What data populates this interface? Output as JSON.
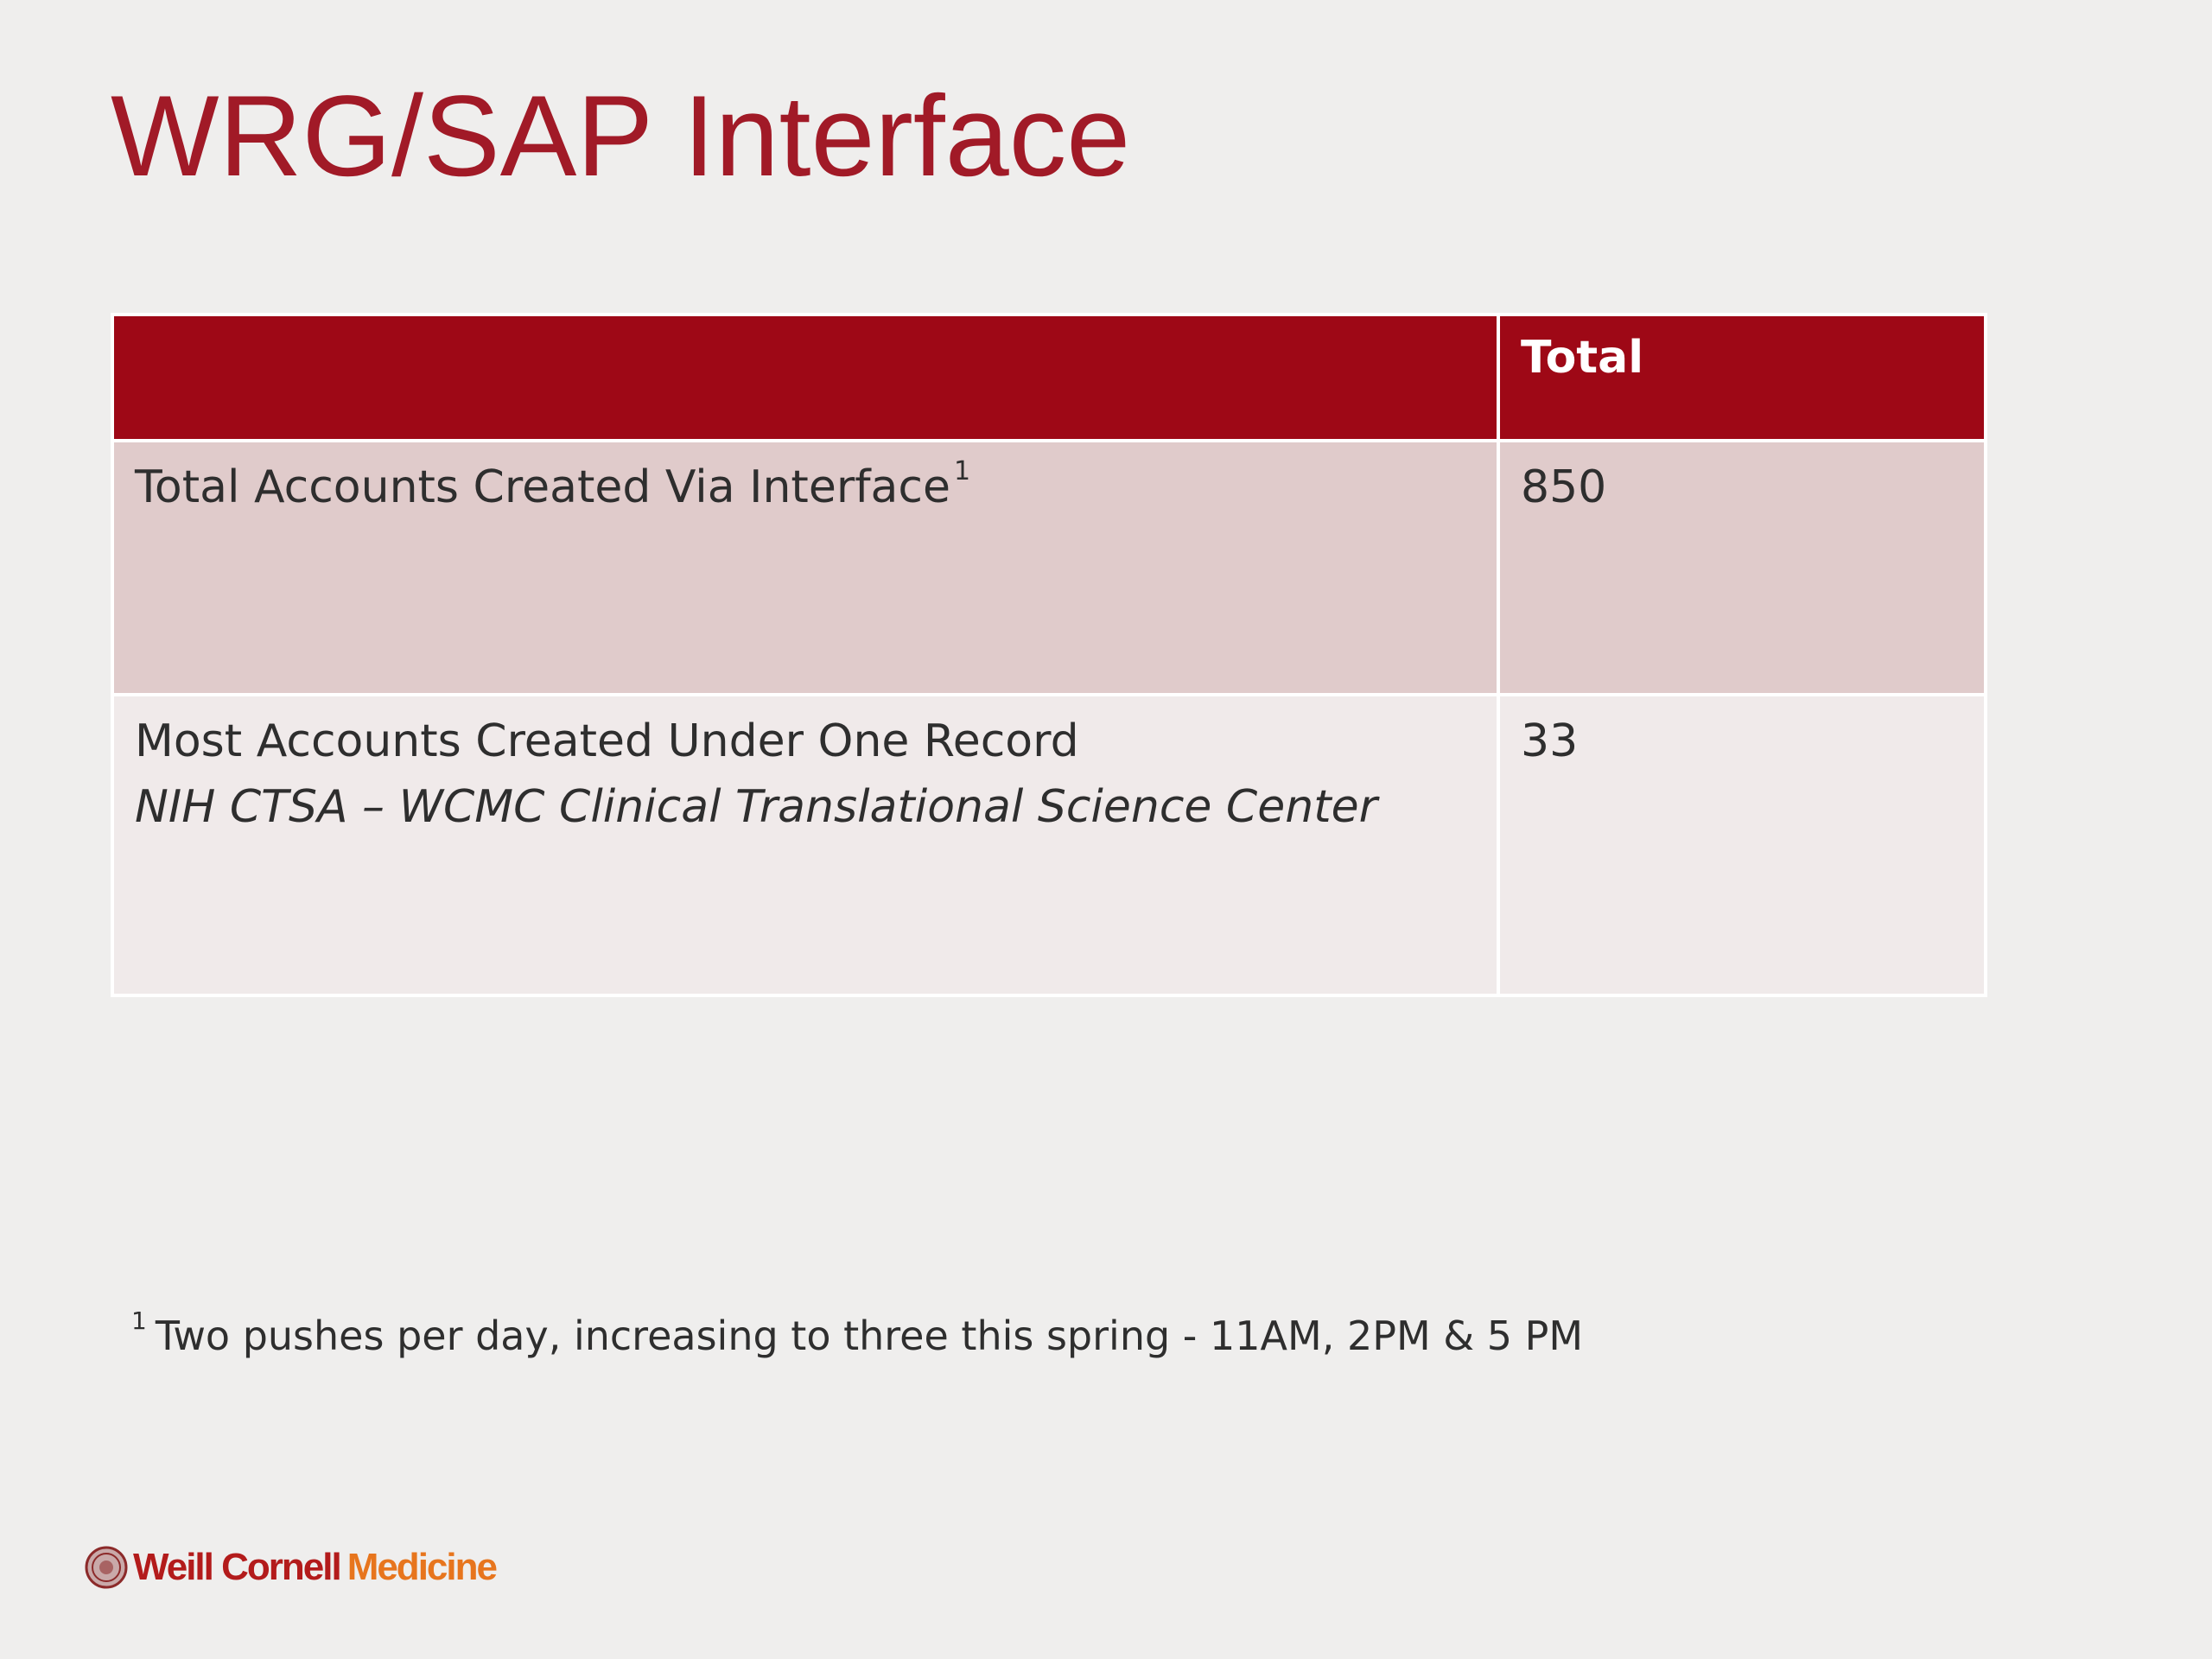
{
  "slide": {
    "title": "WRG/SAP Interface"
  },
  "table": {
    "header": {
      "label": "",
      "total": "Total"
    },
    "rows": [
      {
        "label": "Total Accounts Created Via Interface",
        "label_superscript": "1",
        "sublabel": "",
        "total": "850"
      },
      {
        "label": "Most Accounts Created Under One Record",
        "label_superscript": "",
        "sublabel": "NIH CTSA – WCMC Clinical Translational Science Center",
        "total": "33"
      }
    ]
  },
  "footnote": {
    "marker": "1",
    "text": "Two pushes per day, increasing to three this spring - 11AM, 2PM & 5 PM"
  },
  "branding": {
    "logo_icon": "cornell-seal-icon",
    "name": "Weill Cornell",
    "accent": "Medicine",
    "name_color": "#b31b1b",
    "accent_color": "#e7751d"
  },
  "colors": {
    "title": "#a11a27",
    "header_fill": "#9e0816",
    "row1_fill": "#e0cbcb",
    "row2_fill": "#f0eaea",
    "background": "#efeeed"
  }
}
